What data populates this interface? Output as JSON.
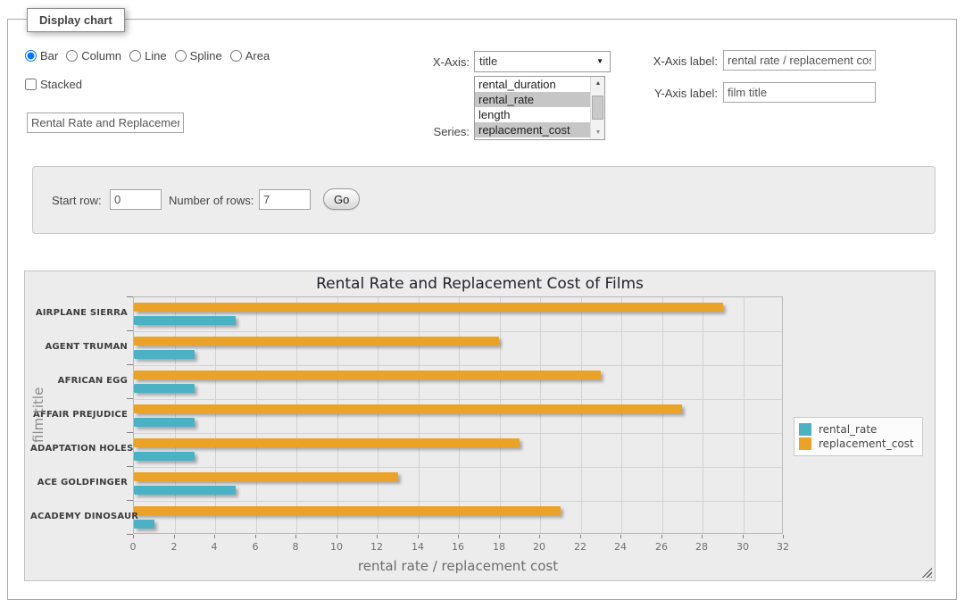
{
  "window": {
    "legend": "Display chart"
  },
  "controls": {
    "chart_types": [
      {
        "label": "Bar",
        "selected": true
      },
      {
        "label": "Column",
        "selected": false
      },
      {
        "label": "Line",
        "selected": false
      },
      {
        "label": "Spline",
        "selected": false
      },
      {
        "label": "Area",
        "selected": false
      }
    ],
    "stacked": {
      "label": "Stacked",
      "checked": false
    },
    "title_input": {
      "value": "Rental Rate and Replacement Cost of Films"
    },
    "x_axis": {
      "label": "X-Axis:",
      "value": "title"
    },
    "series": {
      "label": "Series:",
      "options": [
        {
          "label": "rental_duration",
          "selected": false
        },
        {
          "label": "rental_rate",
          "selected": true
        },
        {
          "label": "length",
          "selected": false
        },
        {
          "label": "replacement_cost",
          "selected": true
        }
      ]
    },
    "x_axis_label": {
      "label": "X-Axis label:",
      "value": "rental rate / replacement cost"
    },
    "y_axis_label": {
      "label": "Y-Axis label:",
      "value": "film title"
    }
  },
  "rows_form": {
    "start_row_label": "Start row:",
    "start_row": "0",
    "num_rows_label": "Number of rows:",
    "num_rows": "7",
    "go_label": "Go"
  },
  "chart_data": {
    "type": "bar",
    "title": "Rental Rate and Replacement Cost of Films",
    "categories": [
      "AIRPLANE SIERRA",
      "AGENT TRUMAN",
      "AFRICAN EGG",
      "AFFAIR PREJUDICE",
      "ADAPTATION HOLES",
      "ACE GOLDFINGER",
      "ACADEMY DINOSAUR"
    ],
    "series": [
      {
        "name": "rental_rate",
        "color": "#4bb2c5",
        "values": [
          4.99,
          2.99,
          2.99,
          2.99,
          2.99,
          4.99,
          0.99
        ]
      },
      {
        "name": "replacement_cost",
        "color": "#EAA228",
        "values": [
          28.99,
          17.99,
          22.99,
          26.99,
          18.99,
          12.99,
          20.99
        ]
      }
    ],
    "xlabel": "rental rate / replacement cost",
    "ylabel": "film title",
    "xlim": [
      0,
      32
    ],
    "xticks": [
      0,
      2,
      4,
      6,
      8,
      10,
      12,
      14,
      16,
      18,
      20,
      22,
      24,
      26,
      28,
      30,
      32
    ],
    "grid": true,
    "legend_position": "right"
  }
}
